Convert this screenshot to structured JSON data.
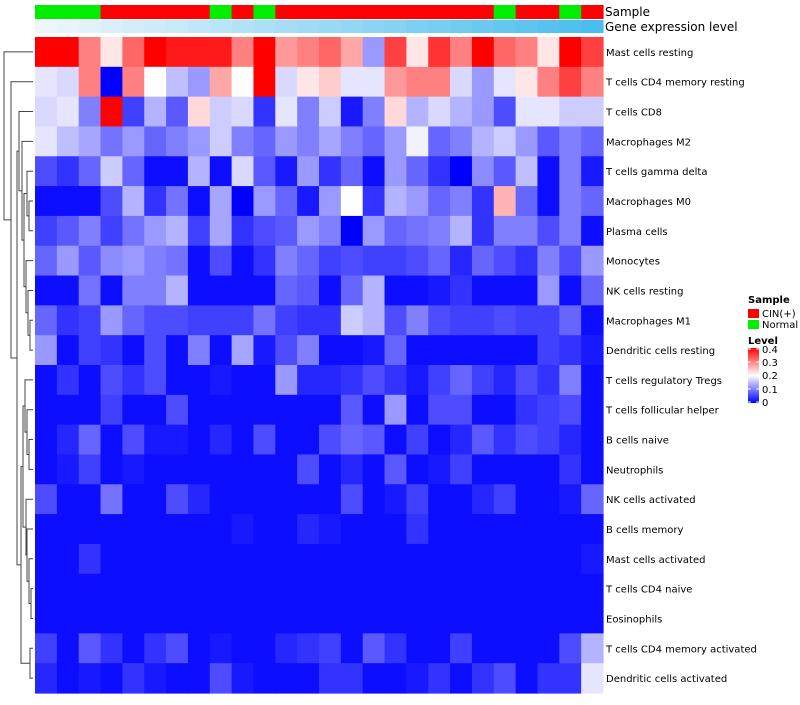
{
  "chart_data": {
    "type": "heatmap",
    "annotation_labels": {
      "sample": "Sample",
      "gene_expression": "Gene expression level"
    },
    "legend": {
      "sample_title": "Sample",
      "sample_entries": [
        {
          "label": "CIN(+)",
          "color": "#ff0000"
        },
        {
          "label": "Normal",
          "color": "#00ee00"
        }
      ],
      "level_title": "Level",
      "level_ticks": [
        "0.4",
        "0.3",
        "0.2",
        "0.1",
        "0"
      ],
      "level_range": [
        0,
        0.4
      ]
    },
    "colors": {
      "high": "#ff0000",
      "mid": "#ffffff",
      "low": "#0000ff",
      "cin": "#ff0000",
      "normal": "#00ee00",
      "dendro": "#444444"
    },
    "samples": [
      "normal",
      "normal",
      "normal",
      "cin",
      "cin",
      "cin",
      "cin",
      "cin",
      "normal",
      "cin",
      "normal",
      "cin",
      "cin",
      "cin",
      "cin",
      "cin",
      "cin",
      "cin",
      "cin",
      "cin",
      "cin",
      "normal",
      "cin",
      "cin",
      "normal",
      "cin"
    ],
    "gene_expression_levels": [
      0.0,
      0.04,
      0.08,
      0.12,
      0.16,
      0.2,
      0.24,
      0.28,
      0.32,
      0.36,
      0.4,
      0.44,
      0.48,
      0.52,
      0.56,
      0.6,
      0.64,
      0.68,
      0.72,
      0.76,
      0.8,
      0.84,
      0.88,
      0.92,
      0.96,
      1.0
    ],
    "rows": [
      {
        "label": "Mast cells resting",
        "values": [
          0.4,
          0.4,
          0.3,
          0.22,
          0.32,
          0.4,
          0.38,
          0.38,
          0.38,
          0.3,
          0.4,
          0.28,
          0.3,
          0.32,
          0.27,
          0.12,
          0.35,
          0.22,
          0.36,
          0.3,
          0.4,
          0.32,
          0.3,
          0.22,
          0.4,
          0.35
        ]
      },
      {
        "label": "T cells CD4 memory resting",
        "values": [
          0.18,
          0.17,
          0.3,
          0.0,
          0.3,
          0.2,
          0.15,
          0.12,
          0.27,
          0.2,
          0.4,
          0.17,
          0.22,
          0.24,
          0.18,
          0.18,
          0.28,
          0.3,
          0.3,
          0.17,
          0.12,
          0.18,
          0.22,
          0.3,
          0.35,
          0.3
        ]
      },
      {
        "label": "T cells CD8",
        "values": [
          0.17,
          0.18,
          0.1,
          0.4,
          0.05,
          0.14,
          0.07,
          0.23,
          0.16,
          0.17,
          0.04,
          0.18,
          0.1,
          0.16,
          0.02,
          0.1,
          0.23,
          0.14,
          0.17,
          0.14,
          0.12,
          0.06,
          0.18,
          0.18,
          0.16,
          0.16
        ]
      },
      {
        "label": "Macrophages M2",
        "values": [
          0.18,
          0.15,
          0.13,
          0.09,
          0.12,
          0.08,
          0.1,
          0.12,
          0.16,
          0.1,
          0.08,
          0.12,
          0.1,
          0.13,
          0.1,
          0.08,
          0.12,
          0.19,
          0.08,
          0.1,
          0.14,
          0.16,
          0.12,
          0.07,
          0.1,
          0.08
        ]
      },
      {
        "label": "T cells gamma delta",
        "values": [
          0.06,
          0.04,
          0.08,
          0.16,
          0.08,
          0.01,
          0.01,
          0.14,
          0.01,
          0.17,
          0.07,
          0.02,
          0.12,
          0.04,
          0.08,
          0.01,
          0.12,
          0.08,
          0.04,
          0.0,
          0.11,
          0.07,
          0.15,
          0.01,
          0.1,
          0.02
        ]
      },
      {
        "label": "Macrophages M0",
        "values": [
          0.01,
          0.01,
          0.01,
          0.06,
          0.14,
          0.04,
          0.09,
          0.01,
          0.13,
          0.0,
          0.12,
          0.08,
          0.02,
          0.12,
          0.2,
          0.04,
          0.14,
          0.12,
          0.08,
          0.1,
          0.04,
          0.26,
          0.08,
          0.01,
          0.1,
          0.08
        ]
      },
      {
        "label": "Plasma cells",
        "values": [
          0.05,
          0.07,
          0.1,
          0.05,
          0.09,
          0.12,
          0.14,
          0.05,
          0.13,
          0.04,
          0.06,
          0.07,
          0.12,
          0.1,
          0.0,
          0.12,
          0.08,
          0.09,
          0.1,
          0.14,
          0.04,
          0.1,
          0.1,
          0.06,
          0.1,
          0.01
        ]
      },
      {
        "label": "Monocytes",
        "values": [
          0.08,
          0.12,
          0.07,
          0.11,
          0.12,
          0.1,
          0.09,
          0.01,
          0.06,
          0.01,
          0.04,
          0.1,
          0.08,
          0.05,
          0.06,
          0.05,
          0.05,
          0.06,
          0.08,
          0.03,
          0.08,
          0.06,
          0.04,
          0.1,
          0.06,
          0.12
        ]
      },
      {
        "label": "NK cells resting",
        "values": [
          0.01,
          0.01,
          0.09,
          0.01,
          0.1,
          0.1,
          0.14,
          0.01,
          0.01,
          0.01,
          0.01,
          0.08,
          0.07,
          0.01,
          0.08,
          0.14,
          0.01,
          0.01,
          0.02,
          0.04,
          0.01,
          0.01,
          0.01,
          0.12,
          0.01,
          0.08
        ]
      },
      {
        "label": "Macrophages M1",
        "values": [
          0.08,
          0.04,
          0.05,
          0.12,
          0.08,
          0.06,
          0.06,
          0.05,
          0.05,
          0.05,
          0.09,
          0.05,
          0.04,
          0.04,
          0.16,
          0.14,
          0.06,
          0.1,
          0.06,
          0.05,
          0.05,
          0.06,
          0.05,
          0.05,
          0.08,
          0.01
        ]
      },
      {
        "label": "Dendritic cells resting",
        "values": [
          0.12,
          0.01,
          0.05,
          0.04,
          0.01,
          0.06,
          0.01,
          0.1,
          0.01,
          0.13,
          0.02,
          0.06,
          0.1,
          0.01,
          0.01,
          0.02,
          0.08,
          0.01,
          0.01,
          0.01,
          0.01,
          0.01,
          0.01,
          0.05,
          0.04,
          0.02
        ]
      },
      {
        "label": "T cells regulatory  Tregs",
        "values": [
          0.01,
          0.04,
          0.01,
          0.06,
          0.04,
          0.06,
          0.01,
          0.01,
          0.02,
          0.01,
          0.01,
          0.12,
          0.03,
          0.03,
          0.04,
          0.06,
          0.04,
          0.02,
          0.05,
          0.08,
          0.05,
          0.03,
          0.06,
          0.04,
          0.1,
          0.01
        ]
      },
      {
        "label": "T cells follicular helper",
        "values": [
          0.01,
          0.01,
          0.01,
          0.05,
          0.01,
          0.01,
          0.06,
          0.01,
          0.01,
          0.01,
          0.01,
          0.01,
          0.01,
          0.01,
          0.07,
          0.01,
          0.12,
          0.01,
          0.06,
          0.06,
          0.01,
          0.01,
          0.04,
          0.05,
          0.06,
          0.01
        ]
      },
      {
        "label": "B cells naive",
        "values": [
          0.01,
          0.03,
          0.08,
          0.01,
          0.06,
          0.02,
          0.02,
          0.01,
          0.03,
          0.01,
          0.06,
          0.01,
          0.01,
          0.06,
          0.08,
          0.07,
          0.01,
          0.05,
          0.01,
          0.03,
          0.07,
          0.04,
          0.06,
          0.05,
          0.03,
          0.01
        ]
      },
      {
        "label": "Neutrophils",
        "values": [
          0.01,
          0.02,
          0.05,
          0.01,
          0.02,
          0.01,
          0.01,
          0.01,
          0.01,
          0.01,
          0.01,
          0.01,
          0.06,
          0.01,
          0.03,
          0.01,
          0.07,
          0.01,
          0.02,
          0.05,
          0.01,
          0.01,
          0.01,
          0.01,
          0.04,
          0.01
        ]
      },
      {
        "label": "NK cells activated",
        "values": [
          0.06,
          0.01,
          0.01,
          0.09,
          0.01,
          0.01,
          0.06,
          0.03,
          0.01,
          0.01,
          0.01,
          0.01,
          0.01,
          0.01,
          0.06,
          0.01,
          0.02,
          0.05,
          0.01,
          0.01,
          0.03,
          0.05,
          0.01,
          0.01,
          0.02,
          0.08
        ]
      },
      {
        "label": "B cells memory",
        "values": [
          0.01,
          0.01,
          0.01,
          0.01,
          0.01,
          0.01,
          0.01,
          0.01,
          0.01,
          0.02,
          0.01,
          0.01,
          0.03,
          0.02,
          0.01,
          0.01,
          0.01,
          0.04,
          0.01,
          0.01,
          0.01,
          0.01,
          0.01,
          0.01,
          0.01,
          0.01
        ]
      },
      {
        "label": "Mast cells activated",
        "values": [
          0.01,
          0.01,
          0.04,
          0.01,
          0.01,
          0.01,
          0.01,
          0.01,
          0.01,
          0.01,
          0.01,
          0.01,
          0.01,
          0.01,
          0.01,
          0.01,
          0.01,
          0.01,
          0.01,
          0.01,
          0.01,
          0.01,
          0.01,
          0.01,
          0.01,
          0.02
        ]
      },
      {
        "label": "T cells CD4 naive",
        "values": [
          0.01,
          0.01,
          0.01,
          0.01,
          0.01,
          0.01,
          0.01,
          0.01,
          0.01,
          0.01,
          0.01,
          0.01,
          0.01,
          0.01,
          0.01,
          0.01,
          0.01,
          0.01,
          0.01,
          0.01,
          0.01,
          0.01,
          0.01,
          0.01,
          0.01,
          0.01
        ]
      },
      {
        "label": "Eosinophils",
        "values": [
          0.01,
          0.01,
          0.01,
          0.01,
          0.01,
          0.01,
          0.01,
          0.01,
          0.01,
          0.01,
          0.01,
          0.01,
          0.01,
          0.01,
          0.01,
          0.01,
          0.01,
          0.01,
          0.01,
          0.01,
          0.01,
          0.01,
          0.01,
          0.01,
          0.01,
          0.01
        ]
      },
      {
        "label": "T cells CD4 memory activated",
        "values": [
          0.05,
          0.01,
          0.07,
          0.04,
          0.01,
          0.04,
          0.06,
          0.01,
          0.02,
          0.01,
          0.01,
          0.03,
          0.04,
          0.05,
          0.01,
          0.07,
          0.04,
          0.01,
          0.01,
          0.05,
          0.01,
          0.01,
          0.01,
          0.01,
          0.06,
          0.14
        ]
      },
      {
        "label": "Dendritic cells activated",
        "values": [
          0.03,
          0.01,
          0.02,
          0.01,
          0.04,
          0.02,
          0.01,
          0.01,
          0.06,
          0.02,
          0.01,
          0.01,
          0.01,
          0.04,
          0.04,
          0.01,
          0.01,
          0.02,
          0.04,
          0.01,
          0.04,
          0.06,
          0.01,
          0.04,
          0.04,
          0.18
        ]
      }
    ]
  }
}
